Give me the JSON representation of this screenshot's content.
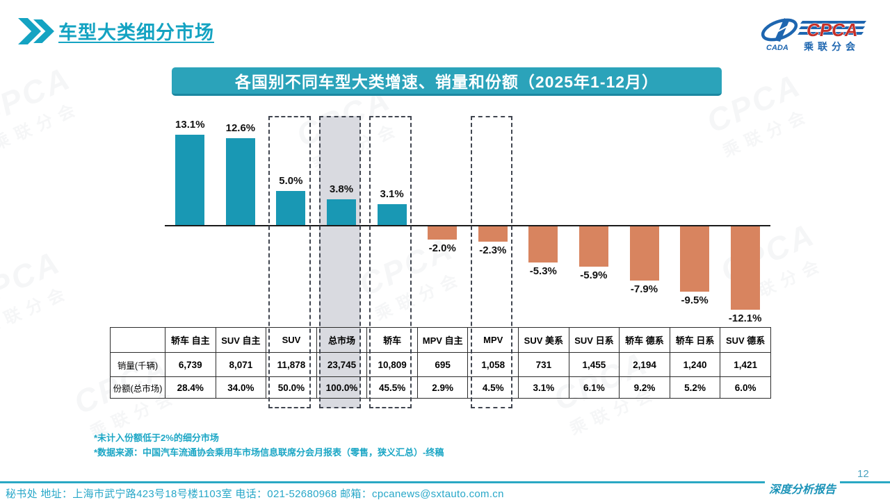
{
  "page": {
    "title": "车型大类细分市场",
    "page_number": "12",
    "report_label": "深度分析报告"
  },
  "logo": {
    "emblem": "CADA",
    "name": "CPCA",
    "subtitle": "乘联分会"
  },
  "banner": {
    "title": "各国别不同车型大类增速、销量和份额（2025年1-12月）"
  },
  "chart_data": {
    "type": "bar",
    "title": "各国别不同车型大类增速、销量和份额（2025年1-12月）",
    "categories": [
      "轿车 自主",
      "SUV 自主",
      "SUV",
      "总市场",
      "轿车",
      "MPV 自主",
      "MPV",
      "SUV 美系",
      "SUV 日系",
      "轿车 德系",
      "轿车 日系",
      "SUV 德系"
    ],
    "series": [
      {
        "name": "增速",
        "values": [
          13.1,
          12.6,
          5.0,
          3.8,
          3.1,
          -2.0,
          -2.3,
          -5.3,
          -5.9,
          -7.9,
          -9.5,
          -12.1
        ]
      }
    ],
    "data_labels": [
      "13.1%",
      "12.6%",
      "5.0%",
      "3.8%",
      "3.1%",
      "-2.0%",
      "-2.3%",
      "-5.3%",
      "-5.9%",
      "-7.9%",
      "-9.5%",
      "-12.1%"
    ],
    "highlight_boxed": [
      "SUV",
      "总市场",
      "轿车",
      "MPV"
    ],
    "highlight_filled": "总市场",
    "xlabel": "",
    "ylabel": "",
    "ylim": [
      -13,
      15
    ],
    "grid": false,
    "legend": "none",
    "colors": {
      "positive": "#1998B4",
      "negative": "#D8845F",
      "highlight_fill": "#D9DAE0"
    }
  },
  "table": {
    "columns": [
      "轿车 自主",
      "SUV 自主",
      "SUV",
      "总市场",
      "轿车",
      "MPV 自主",
      "MPV",
      "SUV 美系",
      "SUV 日系",
      "轿车 德系",
      "轿车 日系",
      "SUV 德系"
    ],
    "row_headers": [
      "销量(千辆)",
      "份额(总市场)"
    ],
    "rows": [
      [
        "6,739",
        "8,071",
        "11,878",
        "23,745",
        "10,809",
        "695",
        "1,058",
        "731",
        "1,455",
        "2,194",
        "1,240",
        "1,421"
      ],
      [
        "28.4%",
        "34.0%",
        "50.0%",
        "100.0%",
        "45.5%",
        "2.9%",
        "4.5%",
        "3.1%",
        "6.1%",
        "9.2%",
        "5.2%",
        "6.0%"
      ]
    ]
  },
  "footnotes": [
    "*未计入份额低于2%的细分市场",
    "*数据来源：中国汽车流通协会乘用车市场信息联席分会月报表（零售，狭义汇总）-终稿"
  ],
  "footer": {
    "text": "秘书处  地址：上海市武宁路423号18号楼1103室 电话：021-52680968  邮箱：cpcanews@sxtauto.com.cn"
  },
  "watermark": {
    "text": "CPCA",
    "subtext": "乘联分会"
  }
}
